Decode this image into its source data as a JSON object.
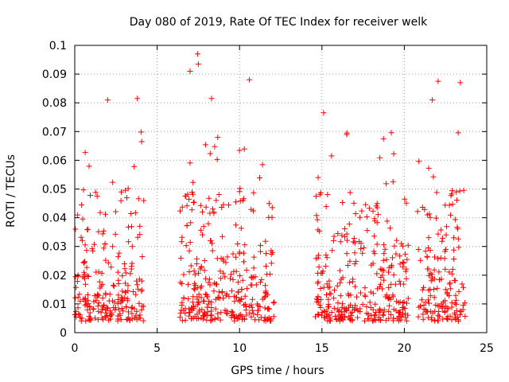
{
  "chart_data": {
    "type": "scatter",
    "title": "Day 080 of 2019, Rate Of TEC Index for receiver welk",
    "xlabel": "GPS time / hours",
    "ylabel": "ROTI / TECUs",
    "xlim": [
      0,
      25
    ],
    "ylim": [
      0,
      0.1
    ],
    "x_ticks": [
      0,
      5,
      10,
      15,
      20,
      25
    ],
    "x_tick_labels": [
      "0",
      "5",
      "10",
      "15",
      "20",
      "25"
    ],
    "y_ticks": [
      0,
      0.01,
      0.02,
      0.03,
      0.04,
      0.05,
      0.06,
      0.07,
      0.08,
      0.09,
      0.1
    ],
    "y_tick_labels": [
      "0",
      "0.01",
      "0.02",
      "0.03",
      "0.04",
      "0.05",
      "0.06",
      "0.07",
      "0.08",
      "0.09",
      "0.1"
    ],
    "grid": true,
    "marker": "+",
    "marker_color": "#ff0000",
    "series": [
      {
        "name": "ROTI",
        "observation_windows_hours": [
          [
            0.0,
            4.2
          ],
          [
            6.3,
            12.1
          ],
          [
            14.6,
            20.3
          ],
          [
            20.8,
            23.7
          ]
        ],
        "typical_range": [
          0.004,
          0.03
        ],
        "notable_points": [
          {
            "x": 2.0,
            "y": 0.081
          },
          {
            "x": 3.8,
            "y": 0.0815
          },
          {
            "x": 7.45,
            "y": 0.097
          },
          {
            "x": 7.5,
            "y": 0.0935
          },
          {
            "x": 7.0,
            "y": 0.091
          },
          {
            "x": 8.3,
            "y": 0.0815
          },
          {
            "x": 10.6,
            "y": 0.088
          },
          {
            "x": 15.1,
            "y": 0.0765
          },
          {
            "x": 22.05,
            "y": 0.0875
          },
          {
            "x": 23.4,
            "y": 0.087
          },
          {
            "x": 21.7,
            "y": 0.081
          }
        ]
      }
    ]
  }
}
